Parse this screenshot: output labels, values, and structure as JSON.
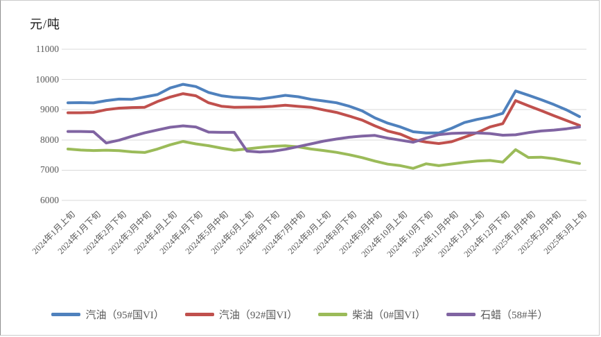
{
  "window": {
    "border_color": "#cbcbcb",
    "background_color": "#ffffff"
  },
  "chart_data": {
    "type": "line",
    "unit_label": "元/吨",
    "y_axis": {
      "min": 6000,
      "max": 11000,
      "tick_step": 1000,
      "ticks": [
        11000,
        10000,
        9000,
        8000,
        7000,
        6000
      ]
    },
    "x_labels": [
      "2024年1月上旬",
      "2024年1月下旬",
      "2024年2月下旬",
      "2024年3月中旬",
      "2024年4月上旬",
      "2024年4月下旬",
      "2024年5月中旬",
      "2024年6月上旬",
      "2024年6月下旬",
      "2024年7月中旬",
      "2024年8月上旬",
      "2024年8月下旬",
      "2024年9月中旬",
      "2024年10月上旬",
      "2024年10月下旬",
      "2024年11月中旬",
      "2024年12月上旬",
      "2024年12月下旬",
      "2025年1月中旬",
      "2025年2月中旬",
      "2025年3月上旬"
    ],
    "x_label_point_indices": [
      0,
      2,
      4,
      6,
      8,
      10,
      12,
      14,
      16,
      18,
      20,
      22,
      24,
      26,
      28,
      30,
      32,
      34,
      36,
      38,
      40
    ],
    "n_points": 41,
    "series": [
      {
        "name": "汽油（95#国VI）",
        "color": "#4F81BD",
        "values": [
          9230,
          9235,
          9225,
          9300,
          9350,
          9345,
          9420,
          9500,
          9720,
          9840,
          9765,
          9570,
          9460,
          9410,
          9390,
          9350,
          9410,
          9475,
          9430,
          9345,
          9290,
          9230,
          9115,
          8960,
          8730,
          8555,
          8430,
          8270,
          8230,
          8230,
          8385,
          8575,
          8680,
          8760,
          8880,
          9620,
          9480,
          9330,
          9170,
          8990,
          8770
        ]
      },
      {
        "name": "汽油（92#国VI）",
        "color": "#C0504D",
        "values": [
          8900,
          8900,
          8910,
          9000,
          9050,
          9070,
          9080,
          9270,
          9420,
          9530,
          9460,
          9230,
          9115,
          9080,
          9085,
          9090,
          9110,
          9150,
          9110,
          9080,
          8990,
          8910,
          8790,
          8655,
          8465,
          8295,
          8190,
          8010,
          7930,
          7880,
          7940,
          8090,
          8240,
          8430,
          8540,
          9300,
          9130,
          8970,
          8800,
          8640,
          8480
        ]
      },
      {
        "name": "柴油（0#国VI）",
        "color": "#9BBB59",
        "values": [
          7700,
          7665,
          7650,
          7660,
          7645,
          7605,
          7585,
          7700,
          7840,
          7950,
          7870,
          7810,
          7730,
          7660,
          7705,
          7750,
          7790,
          7805,
          7770,
          7700,
          7650,
          7590,
          7510,
          7415,
          7300,
          7200,
          7150,
          7060,
          7210,
          7150,
          7205,
          7260,
          7300,
          7320,
          7265,
          7680,
          7420,
          7430,
          7380,
          7300,
          7220
        ]
      },
      {
        "name": "石蜡（58#半）",
        "color": "#8064A2",
        "values": [
          8280,
          8280,
          8270,
          7900,
          7990,
          8120,
          8235,
          8330,
          8420,
          8465,
          8430,
          8260,
          8250,
          8250,
          7630,
          7600,
          7625,
          7690,
          7780,
          7870,
          7960,
          8030,
          8090,
          8125,
          8150,
          8060,
          7990,
          7925,
          8060,
          8175,
          8215,
          8230,
          8230,
          8210,
          8155,
          8170,
          8240,
          8295,
          8325,
          8370,
          8430
        ]
      }
    ],
    "gridline_color": "#d9d9d9",
    "axis_text_color": "#595959",
    "legend_position": "bottom"
  }
}
